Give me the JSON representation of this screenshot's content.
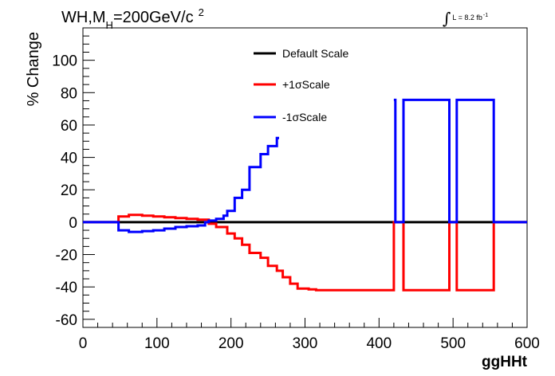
{
  "chart_data": {
    "type": "line",
    "title": {
      "main": "WH,M",
      "subscript": "H",
      "rest": "=200GeV/c",
      "superscript": "2"
    },
    "luminosity": {
      "symbol": "∫",
      "text": "L = 8.2 fb",
      "superscript": "-1"
    },
    "xlabel": "ggHHt",
    "ylabel": "% Change",
    "xlim": [
      0,
      600
    ],
    "ylim": [
      -65,
      120
    ],
    "x_ticks": [
      "0",
      "100",
      "200",
      "300",
      "400",
      "500",
      "600"
    ],
    "y_ticks": [
      "-60",
      "-40",
      "-20",
      "0",
      "20",
      "40",
      "60",
      "80",
      "100"
    ],
    "legend_position": "top-center",
    "series": [
      {
        "name": "Default Scale",
        "color": "#000000",
        "steps": [
          [
            0,
            0
          ],
          [
            600,
            0
          ]
        ]
      },
      {
        "name": "+1σScale",
        "color": "#ff0000",
        "steps": [
          [
            0,
            0
          ],
          [
            48,
            3.5
          ],
          [
            62,
            4.5
          ],
          [
            80,
            4
          ],
          [
            95,
            3.5
          ],
          [
            110,
            3
          ],
          [
            125,
            2.5
          ],
          [
            140,
            2
          ],
          [
            155,
            1.5
          ],
          [
            170,
            -1
          ],
          [
            180,
            -3
          ],
          [
            195,
            -7
          ],
          [
            205,
            -10
          ],
          [
            215,
            -14
          ],
          [
            225,
            -19
          ],
          [
            240,
            -22
          ],
          [
            250,
            -27
          ],
          [
            262,
            -30
          ],
          [
            270,
            -34
          ],
          [
            280,
            -38
          ],
          [
            290,
            -41
          ],
          [
            305,
            -41.5
          ],
          [
            315,
            -42
          ],
          [
            420,
            0
          ],
          [
            422,
            0
          ],
          [
            433,
            -42
          ],
          [
            495,
            0
          ],
          [
            505,
            -42
          ],
          [
            555,
            0
          ],
          [
            600,
            0
          ]
        ]
      },
      {
        "name": "-1σScale",
        "color": "#0000ff",
        "steps": [
          [
            0,
            0
          ],
          [
            48,
            -5
          ],
          [
            62,
            -6
          ],
          [
            80,
            -5.5
          ],
          [
            95,
            -5
          ],
          [
            110,
            -4
          ],
          [
            125,
            -3
          ],
          [
            140,
            -2.5
          ],
          [
            155,
            -2
          ],
          [
            165,
            0
          ],
          [
            170,
            1
          ],
          [
            180,
            2
          ],
          [
            190,
            4
          ],
          [
            195,
            7
          ],
          [
            205,
            15
          ],
          [
            215,
            20
          ],
          [
            225,
            34
          ],
          [
            240,
            42
          ],
          [
            250,
            47
          ],
          [
            262,
            52
          ],
          [
            265,
            null
          ],
          [
            420,
            75.5
          ],
          [
            422,
            0
          ],
          [
            433,
            75.5
          ],
          [
            495,
            0
          ],
          [
            505,
            75.5
          ],
          [
            555,
            0
          ],
          [
            600,
            0
          ]
        ]
      }
    ]
  }
}
